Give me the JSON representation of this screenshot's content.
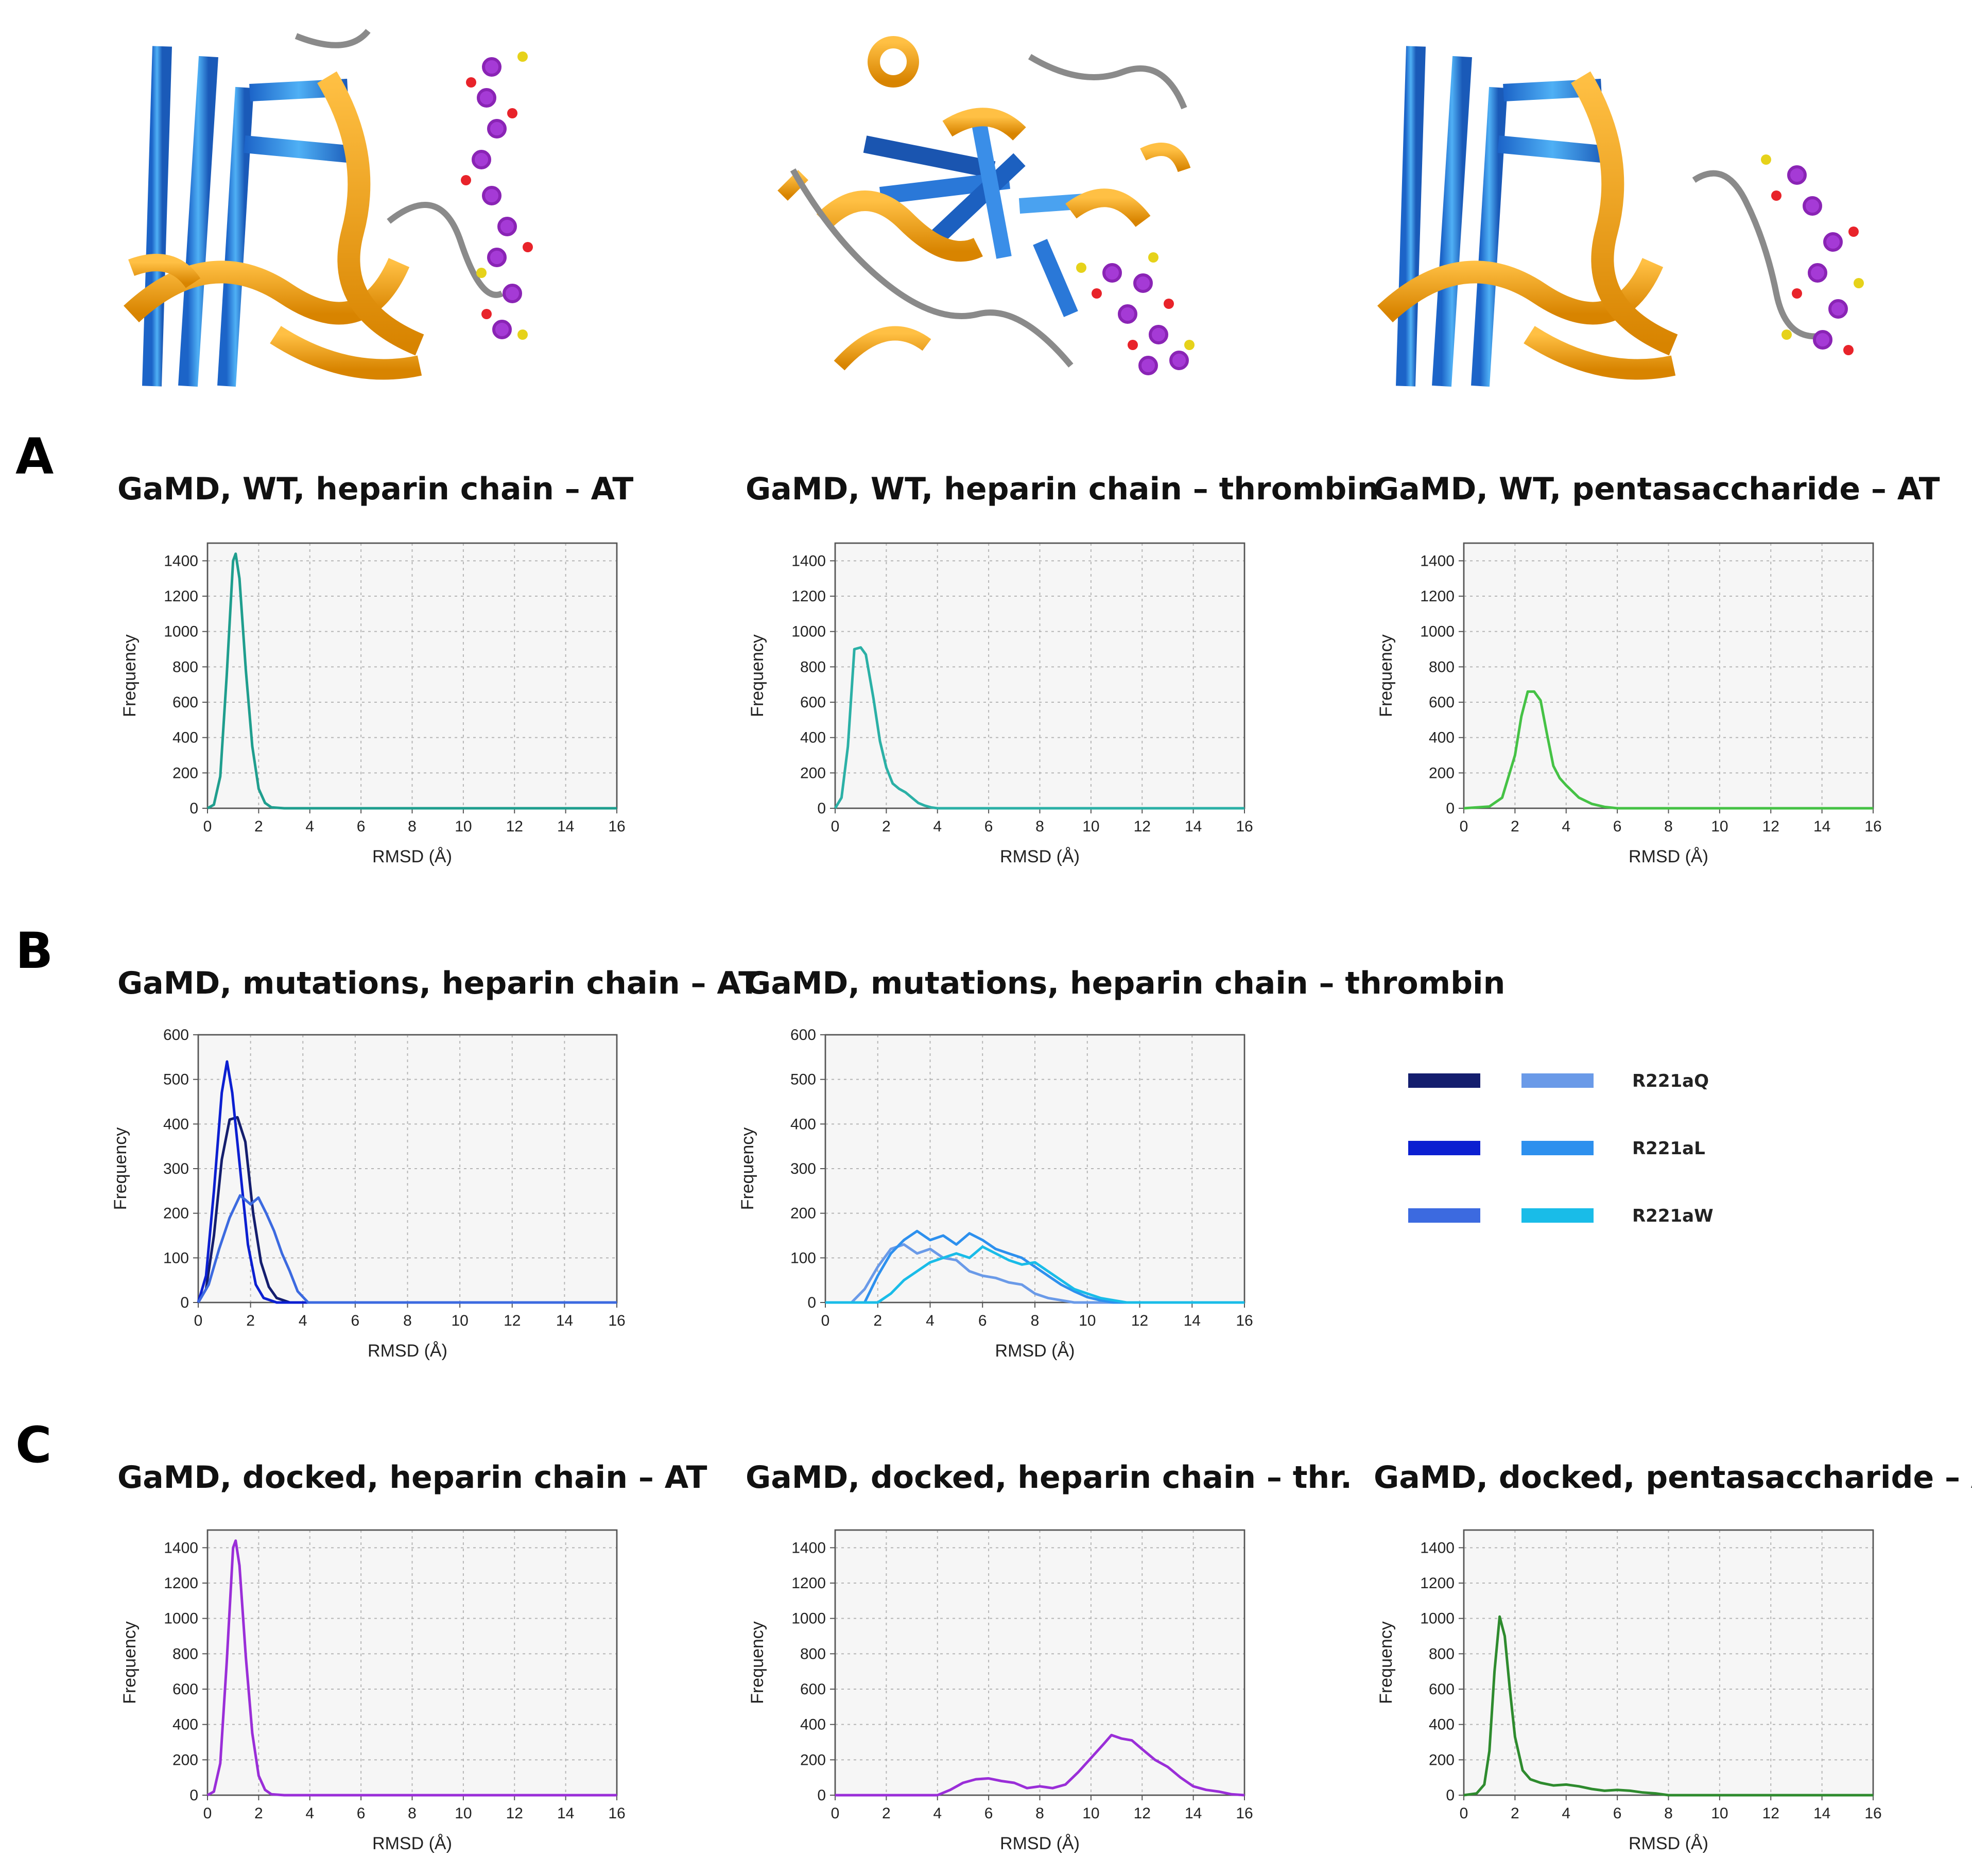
{
  "panel_letters": [
    "A",
    "B",
    "C"
  ],
  "legend": {
    "entries": [
      {
        "label": "R221aQ",
        "colors": [
          "#141e6e",
          "#6a9ae8"
        ]
      },
      {
        "label": "R221aL",
        "colors": [
          "#0b1fd1",
          "#2d90ee"
        ]
      },
      {
        "label": "R221aW",
        "colors": [
          "#3c6ae0",
          "#19bce8"
        ]
      }
    ]
  },
  "structures": [
    {
      "name": "structure-heparin-chain-at",
      "description_icon": "protein-ribbon-icon"
    },
    {
      "name": "structure-heparin-chain-thrombin",
      "description_icon": "protein-ribbon-icon"
    },
    {
      "name": "structure-pentasaccharide-at",
      "description_icon": "protein-ribbon-icon"
    }
  ],
  "chart_data": [
    {
      "type": "line",
      "title": "GaMD, WT, heparin chain – AT",
      "xlabel": "RMSD (Å)",
      "ylabel": "Frequency",
      "xlim": [
        0,
        16
      ],
      "ylim": [
        0,
        1500
      ],
      "xticks": [
        0,
        2,
        4,
        6,
        8,
        10,
        12,
        14,
        16
      ],
      "yticks": [
        0,
        200,
        400,
        600,
        800,
        1000,
        1200,
        1400
      ],
      "grid": true,
      "series": [
        {
          "color": "#1f9e8e",
          "x": [
            0,
            0.25,
            0.5,
            0.75,
            1.0,
            1.1,
            1.25,
            1.5,
            1.75,
            2.0,
            2.25,
            2.5,
            3,
            16
          ],
          "y": [
            0,
            20,
            180,
            750,
            1400,
            1440,
            1300,
            780,
            350,
            110,
            30,
            5,
            0,
            0
          ]
        }
      ]
    },
    {
      "type": "line",
      "title": "GaMD, WT, heparin chain – thrombin",
      "xlabel": "RMSD (Å)",
      "ylabel": "Frequency",
      "xlim": [
        0,
        16
      ],
      "ylim": [
        0,
        1500
      ],
      "xticks": [
        0,
        2,
        4,
        6,
        8,
        10,
        12,
        14,
        16
      ],
      "yticks": [
        0,
        200,
        400,
        600,
        800,
        1000,
        1200,
        1400
      ],
      "grid": true,
      "series": [
        {
          "color": "#2bb0a6",
          "x": [
            0,
            0.25,
            0.5,
            0.75,
            1.0,
            1.2,
            1.5,
            1.75,
            2.0,
            2.25,
            2.5,
            2.75,
            3.0,
            3.25,
            3.5,
            3.75,
            4,
            16
          ],
          "y": [
            0,
            60,
            350,
            900,
            910,
            870,
            620,
            380,
            230,
            140,
            110,
            90,
            60,
            30,
            15,
            5,
            0,
            0
          ]
        }
      ]
    },
    {
      "type": "line",
      "title": "GaMD, WT, pentasaccharide – AT",
      "xlabel": "RMSD (Å)",
      "ylabel": "Frequency",
      "xlim": [
        0,
        16
      ],
      "ylim": [
        0,
        1500
      ],
      "xticks": [
        0,
        2,
        4,
        6,
        8,
        10,
        12,
        14,
        16
      ],
      "yticks": [
        0,
        200,
        400,
        600,
        800,
        1000,
        1200,
        1400
      ],
      "grid": true,
      "series": [
        {
          "color": "#45c245",
          "x": [
            0,
            1.0,
            1.5,
            2.0,
            2.25,
            2.5,
            2.75,
            3.0,
            3.25,
            3.5,
            3.75,
            4.0,
            4.5,
            5.0,
            5.5,
            6.0,
            16
          ],
          "y": [
            0,
            10,
            60,
            300,
            520,
            660,
            660,
            610,
            420,
            240,
            170,
            130,
            60,
            25,
            8,
            0,
            0
          ]
        }
      ]
    },
    {
      "type": "line",
      "title": "GaMD, mutations, heparin chain – AT",
      "xlabel": "RMSD (Å)",
      "ylabel": "Frequency",
      "xlim": [
        0,
        16
      ],
      "ylim": [
        0,
        600
      ],
      "xticks": [
        0,
        2,
        4,
        6,
        8,
        10,
        12,
        14,
        16
      ],
      "yticks": [
        0,
        100,
        200,
        300,
        400,
        500,
        600
      ],
      "grid": true,
      "series": [
        {
          "color": "#141e6e",
          "x": [
            0,
            0.3,
            0.6,
            0.9,
            1.2,
            1.5,
            1.8,
            2.1,
            2.4,
            2.7,
            3.0,
            3.5,
            16
          ],
          "y": [
            0,
            30,
            150,
            320,
            410,
            415,
            360,
            200,
            90,
            35,
            10,
            0,
            0
          ]
        },
        {
          "color": "#0b1fd1",
          "x": [
            0,
            0.3,
            0.6,
            0.9,
            1.1,
            1.3,
            1.6,
            1.9,
            2.2,
            2.5,
            3.0,
            16
          ],
          "y": [
            0,
            60,
            250,
            470,
            540,
            470,
            300,
            130,
            40,
            10,
            0,
            0
          ]
        },
        {
          "color": "#3c6ae0",
          "x": [
            0,
            0.4,
            0.8,
            1.2,
            1.6,
            2.0,
            2.3,
            2.6,
            2.9,
            3.2,
            3.5,
            3.8,
            4.2,
            16
          ],
          "y": [
            0,
            40,
            120,
            190,
            240,
            220,
            235,
            200,
            160,
            110,
            70,
            25,
            0,
            0
          ]
        }
      ]
    },
    {
      "type": "line",
      "title": "GaMD, mutations, heparin chain – thrombin",
      "xlabel": "RMSD (Å)",
      "ylabel": "Frequency",
      "xlim": [
        0,
        16
      ],
      "ylim": [
        0,
        600
      ],
      "xticks": [
        0,
        2,
        4,
        6,
        8,
        10,
        12,
        14,
        16
      ],
      "yticks": [
        0,
        100,
        200,
        300,
        400,
        500,
        600
      ],
      "grid": true,
      "series": [
        {
          "color": "#6a9ae8",
          "x": [
            0,
            1.0,
            1.5,
            2.0,
            2.5,
            3.0,
            3.5,
            4.0,
            4.5,
            5.0,
            5.5,
            6.0,
            6.5,
            7.0,
            7.5,
            8.0,
            8.5,
            9.0,
            9.5,
            10,
            16
          ],
          "y": [
            0,
            0,
            30,
            80,
            120,
            130,
            110,
            120,
            100,
            95,
            70,
            60,
            55,
            45,
            40,
            20,
            10,
            5,
            0,
            0,
            0
          ]
        },
        {
          "color": "#2d90ee",
          "x": [
            0,
            1.5,
            2.0,
            2.5,
            3.0,
            3.5,
            4.0,
            4.5,
            5.0,
            5.5,
            6.0,
            6.5,
            7.0,
            7.5,
            8.0,
            8.5,
            9.0,
            9.5,
            10,
            10.5,
            11,
            16
          ],
          "y": [
            0,
            0,
            60,
            110,
            140,
            160,
            140,
            150,
            130,
            155,
            140,
            120,
            110,
            100,
            80,
            60,
            40,
            25,
            12,
            5,
            0,
            0
          ]
        },
        {
          "color": "#19bce8",
          "x": [
            0,
            2.0,
            2.5,
            3.0,
            3.5,
            4.0,
            4.5,
            5.0,
            5.5,
            6.0,
            6.5,
            7.0,
            7.5,
            8.0,
            8.5,
            9.0,
            9.5,
            10.0,
            10.5,
            11.0,
            11.5,
            16
          ],
          "y": [
            0,
            0,
            20,
            50,
            70,
            90,
            100,
            110,
            100,
            125,
            110,
            95,
            85,
            90,
            70,
            50,
            30,
            20,
            10,
            5,
            0,
            0
          ]
        }
      ]
    },
    {
      "type": "line",
      "title": "GaMD, docked, heparin chain – AT",
      "xlabel": "RMSD (Å)",
      "ylabel": "Frequency",
      "xlim": [
        0,
        16
      ],
      "ylim": [
        0,
        1500
      ],
      "xticks": [
        0,
        2,
        4,
        6,
        8,
        10,
        12,
        14,
        16
      ],
      "yticks": [
        0,
        200,
        400,
        600,
        800,
        1000,
        1200,
        1400
      ],
      "grid": true,
      "series": [
        {
          "color": "#9a2ed8",
          "x": [
            0,
            0.25,
            0.5,
            0.75,
            1.0,
            1.1,
            1.25,
            1.5,
            1.75,
            2.0,
            2.25,
            2.5,
            3,
            16
          ],
          "y": [
            0,
            20,
            180,
            750,
            1400,
            1440,
            1300,
            780,
            350,
            110,
            30,
            5,
            0,
            0
          ]
        }
      ]
    },
    {
      "type": "line",
      "title": "GaMD, docked, heparin chain – thr.",
      "xlabel": "RMSD (Å)",
      "ylabel": "Frequency",
      "xlim": [
        0,
        16
      ],
      "ylim": [
        0,
        1500
      ],
      "xticks": [
        0,
        2,
        4,
        6,
        8,
        10,
        12,
        14,
        16
      ],
      "yticks": [
        0,
        200,
        400,
        600,
        800,
        1000,
        1200,
        1400
      ],
      "grid": true,
      "series": [
        {
          "color": "#9a2ed8",
          "x": [
            0,
            4.0,
            4.5,
            5.0,
            5.5,
            6.0,
            6.5,
            7.0,
            7.5,
            8.0,
            8.5,
            9.0,
            9.5,
            10.0,
            10.5,
            10.8,
            11.2,
            11.6,
            12.0,
            12.5,
            13.0,
            13.5,
            14.0,
            14.5,
            15.0,
            15.5,
            16
          ],
          "y": [
            0,
            0,
            30,
            70,
            90,
            95,
            80,
            70,
            40,
            50,
            40,
            60,
            130,
            210,
            290,
            340,
            320,
            310,
            260,
            200,
            160,
            100,
            50,
            30,
            20,
            5,
            0
          ]
        }
      ]
    },
    {
      "type": "line",
      "title": "GaMD, docked, pentasaccharide – AT",
      "xlabel": "RMSD (Å)",
      "ylabel": "Frequency",
      "xlim": [
        0,
        16
      ],
      "ylim": [
        0,
        1500
      ],
      "xticks": [
        0,
        2,
        4,
        6,
        8,
        10,
        12,
        14,
        16
      ],
      "yticks": [
        0,
        200,
        400,
        600,
        800,
        1000,
        1200,
        1400
      ],
      "grid": true,
      "series": [
        {
          "color": "#2e8b2e",
          "x": [
            0,
            0.5,
            0.8,
            1.0,
            1.2,
            1.4,
            1.6,
            1.8,
            2.0,
            2.3,
            2.6,
            3.0,
            3.5,
            4.0,
            4.5,
            5.0,
            5.5,
            6.0,
            6.5,
            7.0,
            7.5,
            8.0,
            16
          ],
          "y": [
            0,
            10,
            60,
            250,
            700,
            1010,
            900,
            600,
            330,
            140,
            90,
            70,
            55,
            60,
            50,
            35,
            25,
            30,
            25,
            15,
            10,
            0,
            0
          ]
        }
      ]
    }
  ]
}
